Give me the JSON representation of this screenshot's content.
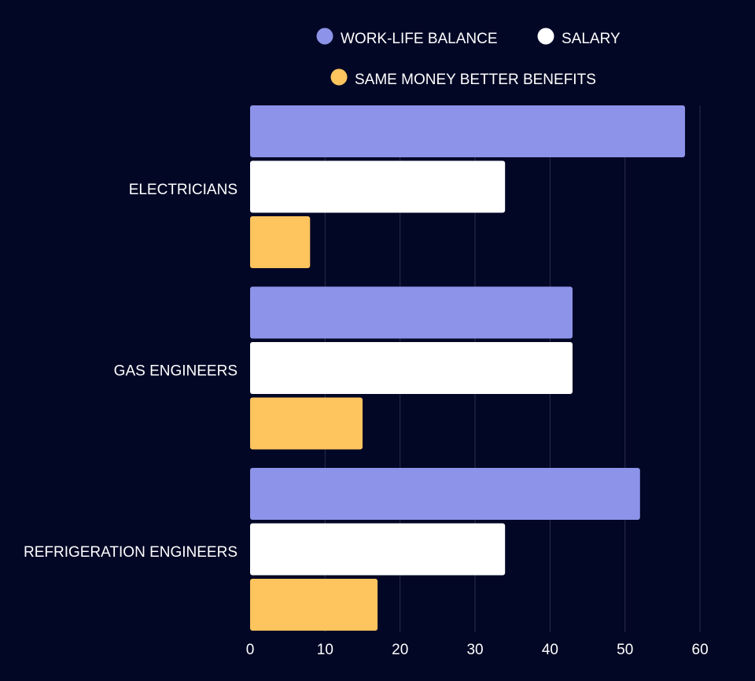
{
  "chart_data": {
    "type": "bar",
    "orientation": "horizontal",
    "title": "",
    "xlabel": "",
    "ylabel": "",
    "xlim": [
      0,
      60
    ],
    "xticks": [
      0,
      10,
      20,
      30,
      40,
      50,
      60
    ],
    "grid": true,
    "legend_position": "top-center",
    "categories": [
      "ELECTRICIANS",
      "GAS ENGINEERS",
      "REFRIGERATION ENGINEERS"
    ],
    "series": [
      {
        "name": "WORK-LIFE BALANCE",
        "color": "#8c93e8",
        "values": [
          58,
          43,
          52
        ]
      },
      {
        "name": "SALARY",
        "color": "#ffffff",
        "values": [
          34,
          43,
          34
        ]
      },
      {
        "name": "SAME MONEY BETTER BENEFITS",
        "color": "#fec45e",
        "values": [
          8,
          15,
          17
        ]
      }
    ]
  },
  "colors": {
    "background": "#020725",
    "grid": "#2a2f4c"
  }
}
